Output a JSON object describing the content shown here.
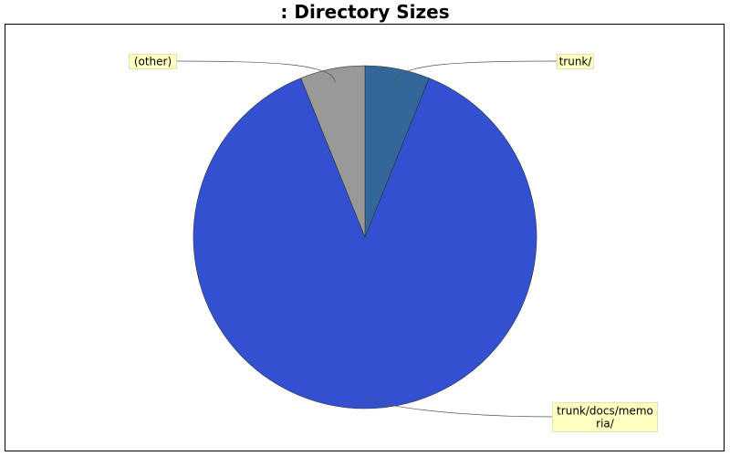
{
  "chart_data": {
    "type": "pie",
    "title": ": Directory Sizes",
    "slices": [
      {
        "label": "trunk/",
        "value": 6.1,
        "color": "#336699"
      },
      {
        "label": "trunk/docs/memoria/",
        "value": 87.8,
        "color": "#3250d0"
      },
      {
        "label": "(other)",
        "value": 6.1,
        "color": "#999999"
      }
    ],
    "legend": "none",
    "label_background": "#ffffc0"
  }
}
